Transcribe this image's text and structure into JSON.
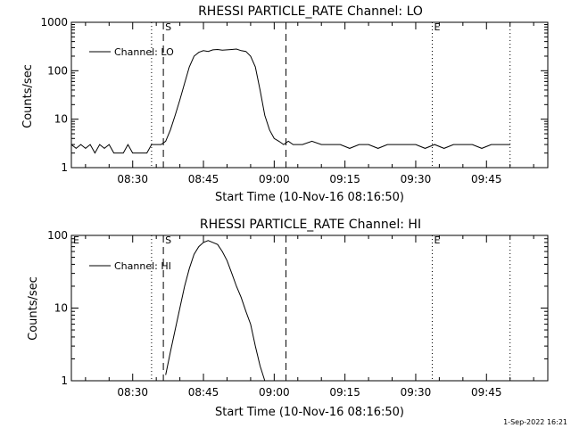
{
  "footer": {
    "timestamp": "1-Sep-2022 16:21"
  },
  "chart_data": [
    {
      "type": "line",
      "title": "RHESSI PARTICLE_RATE Channel: LO",
      "xlabel": "Start Time (10-Nov-16 08:16:50)",
      "ylabel": "Counts/sec",
      "yscale": "log",
      "ylim": [
        1,
        1000
      ],
      "xlim": [
        "08:17",
        "09:58"
      ],
      "x_ticks": [
        "08:30",
        "08:45",
        "09:00",
        "09:15",
        "09:30",
        "09:45"
      ],
      "y_ticks": [
        "1",
        "10",
        "100",
        "1000"
      ],
      "legend": {
        "position": "top-left",
        "entries": [
          "Channel: LO"
        ]
      },
      "markers": [
        {
          "label": "",
          "time": "08:34",
          "style": "dotted"
        },
        {
          "label": "S",
          "time": "08:36.5",
          "style": "dashed"
        },
        {
          "label": "",
          "time": "09:02.5",
          "style": "dashed"
        },
        {
          "label": "E",
          "time": "09:33.5",
          "style": "dotted"
        },
        {
          "label": "",
          "time": "09:50",
          "style": "dotted"
        }
      ],
      "series": [
        {
          "name": "Channel: LO",
          "x": [
            "08:17",
            "08:18",
            "08:19",
            "08:20",
            "08:21",
            "08:22",
            "08:23",
            "08:24",
            "08:25",
            "08:26",
            "08:27",
            "08:28",
            "08:29",
            "08:30",
            "08:31",
            "08:32",
            "08:33",
            "08:34",
            "08:35",
            "08:36",
            "08:37",
            "08:38",
            "08:39",
            "08:40",
            "08:41",
            "08:42",
            "08:43",
            "08:44",
            "08:45",
            "08:46",
            "08:47",
            "08:48",
            "08:49",
            "08:50",
            "08:51",
            "08:52",
            "08:53",
            "08:54",
            "08:55",
            "08:56",
            "08:57",
            "08:58",
            "08:59",
            "09:00",
            "09:01",
            "09:02",
            "09:03",
            "09:04",
            "09:06",
            "09:08",
            "09:10",
            "09:12",
            "09:14",
            "09:16",
            "09:18",
            "09:20",
            "09:22",
            "09:24",
            "09:26",
            "09:28",
            "09:30",
            "09:32",
            "09:34",
            "09:36",
            "09:38",
            "09:40",
            "09:42",
            "09:44",
            "09:46",
            "09:48",
            "09:50"
          ],
          "y": [
            3,
            2.5,
            3,
            2.5,
            3,
            2,
            3,
            2.5,
            3,
            2,
            2,
            2,
            3,
            2,
            2,
            2,
            2,
            3,
            3,
            3,
            3.5,
            6,
            12,
            25,
            55,
            120,
            200,
            240,
            260,
            250,
            270,
            275,
            265,
            270,
            275,
            280,
            260,
            250,
            200,
            120,
            40,
            12,
            6,
            4,
            3.5,
            3,
            3.5,
            3,
            3,
            3.5,
            3,
            3,
            3,
            2.5,
            3,
            3,
            2.5,
            3,
            3,
            3,
            3,
            2.5,
            3,
            2.5,
            3,
            3,
            3,
            2.5,
            3,
            3,
            3
          ]
        }
      ]
    },
    {
      "type": "line",
      "title": "RHESSI PARTICLE_RATE Channel: HI",
      "xlabel": "Start Time (10-Nov-16 08:16:50)",
      "ylabel": "Counts/sec",
      "yscale": "log",
      "ylim": [
        1,
        100
      ],
      "xlim": [
        "08:17",
        "09:58"
      ],
      "x_ticks": [
        "08:30",
        "08:45",
        "09:00",
        "09:15",
        "09:30",
        "09:45"
      ],
      "y_ticks": [
        "1",
        "10",
        "100"
      ],
      "legend": {
        "position": "top-left",
        "entries": [
          "Channel: HI"
        ]
      },
      "markers": [
        {
          "label": "E",
          "time": "08:17",
          "style": "none"
        },
        {
          "label": "",
          "time": "08:34",
          "style": "dotted"
        },
        {
          "label": "S",
          "time": "08:36.5",
          "style": "dashed"
        },
        {
          "label": "",
          "time": "09:02.5",
          "style": "dashed"
        },
        {
          "label": "E",
          "time": "09:33.5",
          "style": "dotted"
        },
        {
          "label": "",
          "time": "09:50",
          "style": "dotted"
        }
      ],
      "series": [
        {
          "name": "Channel: HI",
          "x": [
            "08:37",
            "08:38",
            "08:39",
            "08:40",
            "08:41",
            "08:42",
            "08:43",
            "08:44",
            "08:45",
            "08:46",
            "08:47",
            "08:48",
            "08:49",
            "08:50",
            "08:51",
            "08:52",
            "08:53",
            "08:54",
            "08:55",
            "08:56",
            "08:57",
            "08:58"
          ],
          "y": [
            1.2,
            2.5,
            5,
            10,
            20,
            35,
            55,
            70,
            80,
            85,
            80,
            75,
            60,
            45,
            30,
            20,
            14,
            9,
            6,
            3,
            1.6,
            1.0
          ]
        }
      ]
    }
  ]
}
